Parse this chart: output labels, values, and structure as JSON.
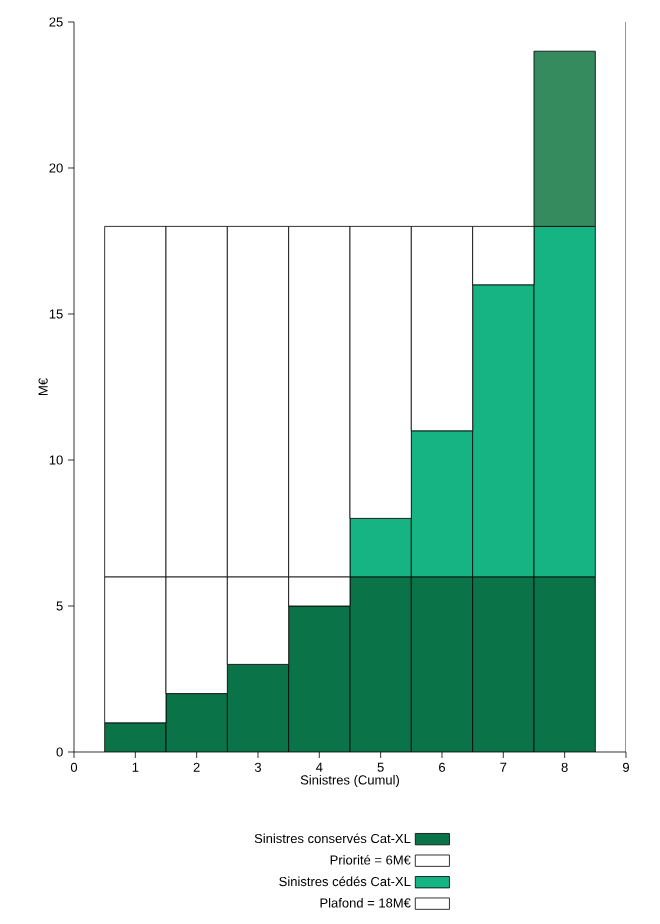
{
  "chart_data": {
    "type": "bar",
    "xlabel": "Sinistres (Cumul)",
    "ylabel": "M€",
    "x": [
      1,
      2,
      3,
      4,
      5,
      6,
      7,
      8
    ],
    "xlim": [
      0,
      9
    ],
    "xticks": [
      0,
      1,
      2,
      3,
      4,
      5,
      6,
      7,
      8,
      9
    ],
    "ylim": [
      0,
      25
    ],
    "yticks": [
      0,
      5,
      10,
      15,
      20,
      25
    ],
    "legend": "bottom",
    "stacked": true,
    "series": [
      {
        "name": "Sinistres conservés Cat-XL",
        "color": "#0a7448",
        "values": [
          1,
          2,
          3,
          5,
          6,
          6,
          6,
          6
        ]
      },
      {
        "name": "Priorité =  6M€",
        "color": "#ffffff",
        "values": [
          5,
          4,
          3,
          1,
          0,
          0,
          0,
          0
        ]
      },
      {
        "name": "Sinistres cédés Cat-XL",
        "color": "#16b383",
        "values": [
          0,
          0,
          0,
          0,
          2,
          5,
          10,
          12
        ]
      },
      {
        "name": "Plafond = 18M€",
        "color": "#ffffff",
        "values": [
          12,
          12,
          12,
          12,
          10,
          7,
          2,
          0
        ]
      },
      {
        "color": "#358a5e",
        "values": [
          0,
          0,
          0,
          0,
          0,
          0,
          0,
          6
        ]
      }
    ]
  }
}
